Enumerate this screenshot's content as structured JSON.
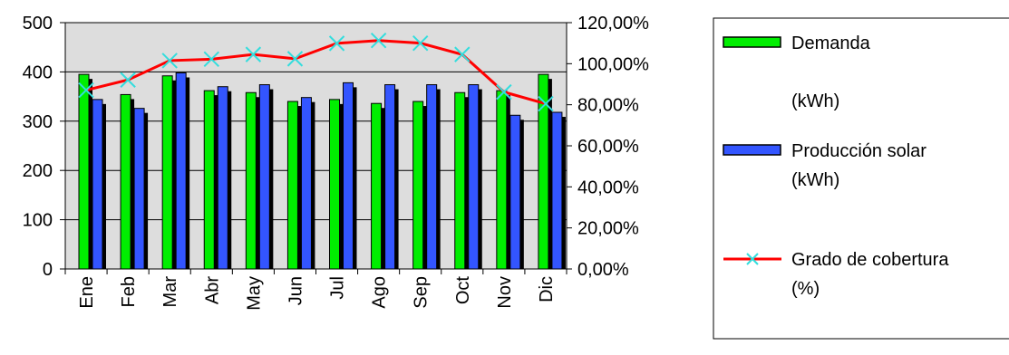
{
  "chart_data": {
    "type": "bar",
    "categories": [
      "Ene",
      "Feb",
      "Mar",
      "Abr",
      "May",
      "Jun",
      "Jul",
      "Ago",
      "Sep",
      "Oct",
      "Nov",
      "Dic"
    ],
    "series": [
      {
        "name": "Demanda\n\n(kWh)",
        "kind": "bar",
        "axis": "left",
        "color": "#00ee00",
        "values": [
          395,
          354,
          392,
          362,
          358,
          340,
          344,
          336,
          340,
          358,
          362,
          395
        ]
      },
      {
        "name": "Producción solar\n(kWh)",
        "kind": "bar",
        "axis": "left",
        "color": "#3355ff",
        "values": [
          344,
          326,
          398,
          370,
          374,
          348,
          378,
          374,
          374,
          374,
          312,
          318
        ]
      },
      {
        "name": "Grado de cobertura\n(%)",
        "kind": "line",
        "axis": "right",
        "color": "#ff0000",
        "marker_color": "#33dddd",
        "values": [
          87.1,
          92.1,
          101.5,
          102.2,
          104.5,
          102.4,
          109.9,
          111.3,
          110.0,
          104.5,
          86.2,
          80.5
        ]
      }
    ],
    "ylim_left": [
      0,
      500
    ],
    "left_ticks": [
      "0",
      "100",
      "200",
      "300",
      "400",
      "500"
    ],
    "ylim_right": [
      0,
      120
    ],
    "right_ticks": [
      "0,00%",
      "20,00%",
      "40,00%",
      "60,00%",
      "80,00%",
      "100,00%",
      "120,00%"
    ],
    "plot_background": "#dddddd",
    "legend_position": "right"
  }
}
